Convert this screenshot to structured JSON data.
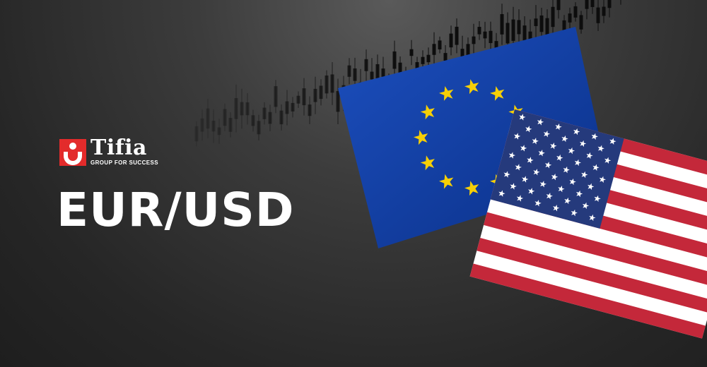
{
  "brand": {
    "name": "Tifia",
    "tagline": "GROUP FOR SUCCESS",
    "logo_color": "#e32b2b"
  },
  "headline": "EUR/USD",
  "colors": {
    "eu_blue": "#0d3b9e",
    "eu_star": "#f6cf06",
    "us_red": "#c4283a",
    "us_blue": "#253a7c",
    "us_white": "#ffffff"
  }
}
